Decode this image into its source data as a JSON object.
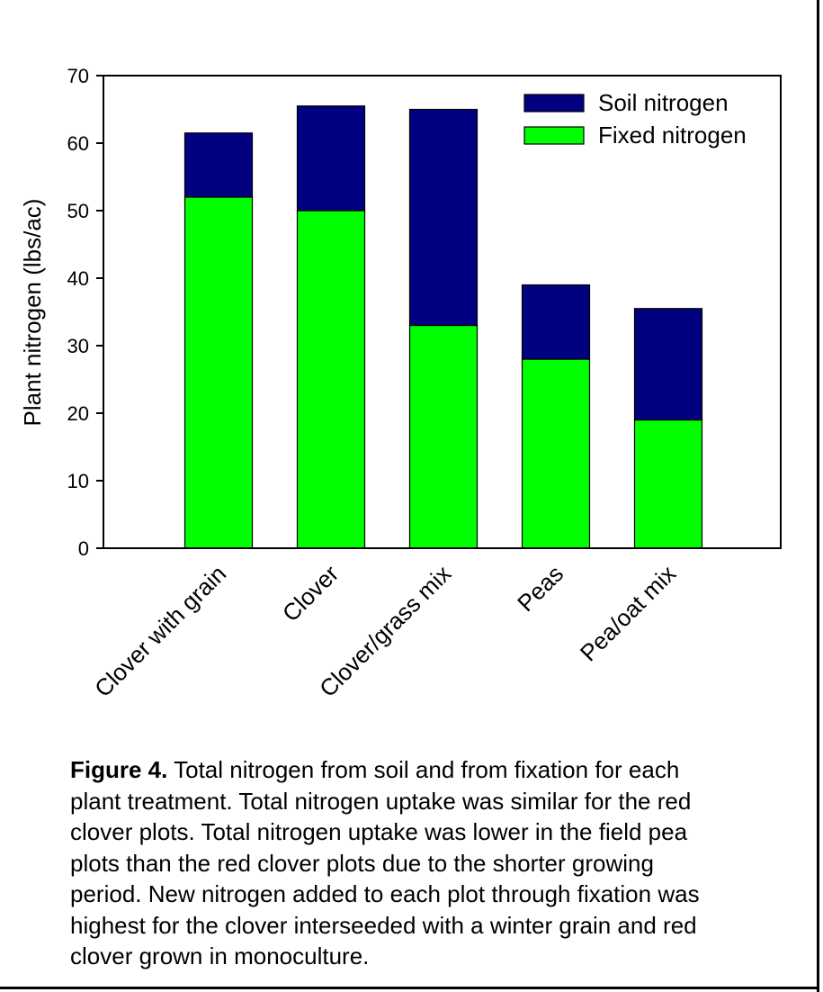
{
  "chart_data": {
    "type": "bar",
    "stacked": true,
    "categories": [
      "Clover with grain",
      "Clover",
      "Clover/grass mix",
      "Peas",
      "Pea/oat mix"
    ],
    "series": [
      {
        "name": "Fixed nitrogen",
        "color": "#00ff00",
        "values": [
          52,
          50,
          33,
          28,
          19
        ]
      },
      {
        "name": "Soil nitrogen",
        "color": "#000080",
        "values": [
          9.5,
          15.5,
          32,
          11,
          16.5
        ]
      }
    ],
    "ylabel": "Plant nitrogen (lbs/ac)",
    "xlabel": "",
    "ylim": [
      0,
      70
    ],
    "yticks": [
      0,
      10,
      20,
      30,
      40,
      50,
      60,
      70
    ],
    "legend_position": "top-right",
    "grid": false
  },
  "caption": {
    "label": "Figure 4.",
    "lines": [
      " Total nitrogen from soil and from fixation for each",
      "plant treatment. Total nitrogen uptake was similar for the red",
      "clover plots. Total nitrogen uptake was lower in the field pea",
      "plots than the red clover plots due to the shorter growing",
      "period. New nitrogen added to each plot through fixation was",
      "highest for the clover interseeded with a winter grain and red",
      "clover grown in monoculture."
    ]
  }
}
